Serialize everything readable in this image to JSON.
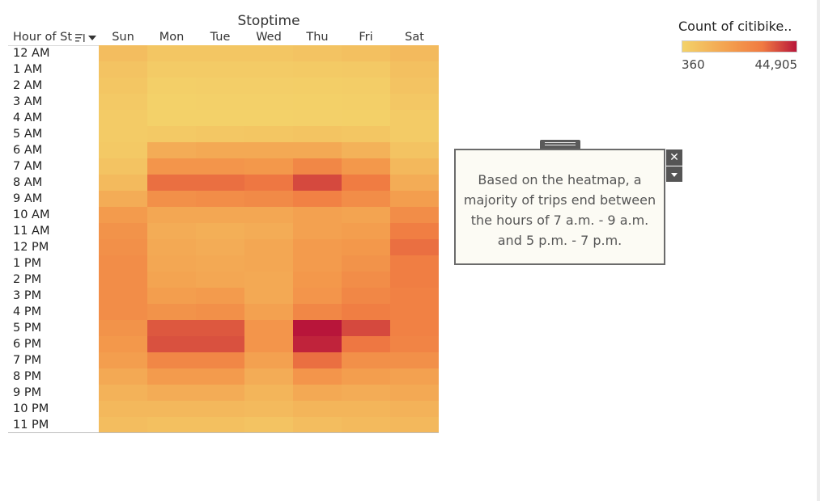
{
  "chart_data": {
    "type": "heatmap",
    "title": "Stoptime",
    "row_header": "Hour of St",
    "columns": [
      "Sun",
      "Mon",
      "Tue",
      "Wed",
      "Thu",
      "Fri",
      "Sat"
    ],
    "rows": [
      "12 AM",
      "1 AM",
      "2 AM",
      "3 AM",
      "4 AM",
      "5 AM",
      "6 AM",
      "7 AM",
      "8 AM",
      "9 AM",
      "10 AM",
      "11 AM",
      "12 PM",
      "1 PM",
      "2 PM",
      "3 PM",
      "4 PM",
      "5 PM",
      "6 PM",
      "7 PM",
      "8 PM",
      "9 PM",
      "10 PM",
      "11 PM"
    ],
    "values": [
      [
        8000,
        5000,
        5000,
        5000,
        6000,
        7000,
        9000
      ],
      [
        6000,
        3000,
        3000,
        3000,
        3500,
        4000,
        7000
      ],
      [
        5000,
        1800,
        2000,
        2000,
        2200,
        2500,
        6000
      ],
      [
        4000,
        1200,
        1300,
        1300,
        1500,
        1800,
        4500
      ],
      [
        3000,
        1000,
        1100,
        1100,
        1300,
        1500,
        3000
      ],
      [
        3000,
        4000,
        4500,
        5000,
        5500,
        5000,
        3000
      ],
      [
        4000,
        14000,
        15000,
        15000,
        15000,
        12000,
        6000
      ],
      [
        6000,
        22000,
        22000,
        21000,
        27000,
        21000,
        10000
      ],
      [
        9000,
        33000,
        33000,
        32000,
        38000,
        31000,
        14000
      ],
      [
        14000,
        24000,
        25000,
        26000,
        29000,
        25000,
        19000
      ],
      [
        20000,
        16000,
        16000,
        16000,
        18000,
        17000,
        25000
      ],
      [
        23000,
        14000,
        13000,
        14000,
        18000,
        19000,
        30000
      ],
      [
        24000,
        15000,
        14000,
        16000,
        20000,
        21000,
        33000
      ],
      [
        25000,
        16000,
        15000,
        16000,
        20000,
        23000,
        30000
      ],
      [
        25000,
        17000,
        16000,
        15000,
        21000,
        25000,
        30000
      ],
      [
        25000,
        19000,
        20000,
        15000,
        22000,
        27000,
        29000
      ],
      [
        25000,
        23000,
        24000,
        18000,
        27000,
        30000,
        29000
      ],
      [
        23000,
        36000,
        36000,
        22000,
        44905,
        38000,
        29000
      ],
      [
        21000,
        37000,
        37000,
        22000,
        43000,
        32000,
        28000
      ],
      [
        19000,
        27000,
        27000,
        18000,
        33000,
        24000,
        24000
      ],
      [
        15000,
        20000,
        20000,
        14000,
        22000,
        19000,
        18000
      ],
      [
        12000,
        14000,
        14000,
        11000,
        15000,
        14000,
        15000
      ],
      [
        10000,
        10000,
        10000,
        9000,
        11000,
        11000,
        12000
      ],
      [
        8000,
        7000,
        7000,
        6000,
        8000,
        9000,
        10000
      ]
    ],
    "legend": {
      "title": "Count of citibike..",
      "min_label": "360",
      "max_label": "44,905",
      "min": 360,
      "max": 44905,
      "colors": [
        "#f3d36a",
        "#f39a4c",
        "#f07a42",
        "#b8153a"
      ]
    }
  },
  "annotation": {
    "text": "Based on the heatmap, a majority of trips end between the hours of 7 a.m. - 9 a.m. and 5 p.m. -  7 p.m.",
    "close_glyph": "✕"
  }
}
